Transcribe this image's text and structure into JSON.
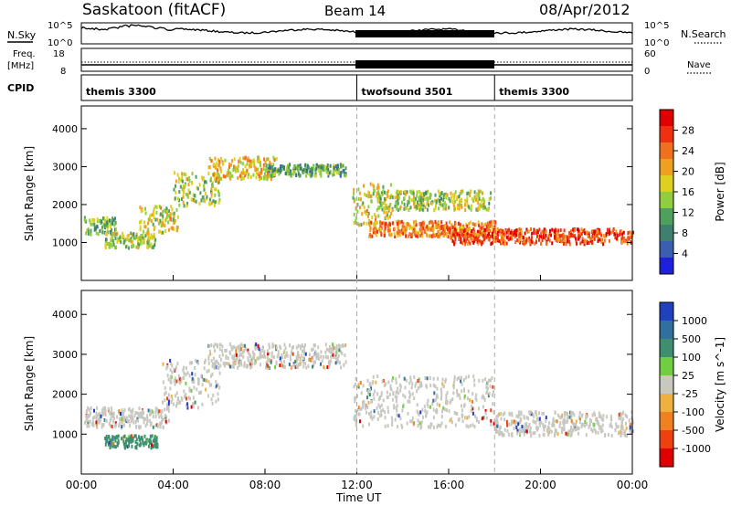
{
  "header": {
    "station": "Saskatoon (fitACF)",
    "beam": "Beam 14",
    "date": "08/Apr/2012"
  },
  "summary": {
    "nsky_label": "N.Sky",
    "nsky_tick_top": "10^5",
    "nsky_tick_bot": "10^0",
    "nsearch_tick_top": "10^5",
    "nsearch_tick_bot": "10^0",
    "nsearch_label": "N.Search",
    "freq_label_1": "Freq.",
    "freq_label_2": "[MHz]",
    "freq_tick_top": "18",
    "freq_tick_bot": "8",
    "nave_tick_top": "60",
    "nave_tick_bot": "0",
    "nave_label": "Nave",
    "cpid_label": "CPID",
    "cpid_modes": [
      {
        "name": "themis 3300",
        "start_hour": 0
      },
      {
        "name": "twofsound 3501",
        "start_hour": 12
      },
      {
        "name": "themis 3300",
        "start_hour": 18
      }
    ]
  },
  "chart_data": [
    {
      "type": "heatmap",
      "title": "Power",
      "ylabel": "Slant Range [km]",
      "xlabel": "",
      "ylim": [
        0,
        4600
      ],
      "y_ticks": [
        "1000",
        "2000",
        "3000",
        "4000"
      ],
      "x_range_hours": [
        0,
        24
      ],
      "colorbar": {
        "label": "Power [dB]",
        "ticks": [
          "4",
          "8",
          "12",
          "16",
          "20",
          "24",
          "28"
        ],
        "range": [
          0,
          30
        ],
        "colors": [
          "#1f1fe0",
          "#3a5fb0",
          "#3f7f6f",
          "#4f9f5f",
          "#8fcf3f",
          "#dfd020",
          "#f0a020",
          "#f07020",
          "#f03010",
          "#e00000"
        ]
      },
      "bands": [
        {
          "t0": 0.1,
          "t1": 1.5,
          "r0": 1250,
          "r1": 1700,
          "level": 12
        },
        {
          "t0": 1.0,
          "t1": 3.2,
          "r0": 900,
          "r1": 1300,
          "level": 14
        },
        {
          "t0": 2.5,
          "t1": 4.2,
          "r0": 1300,
          "r1": 2000,
          "level": 16
        },
        {
          "t0": 4.0,
          "t1": 6.0,
          "r0": 2000,
          "r1": 2900,
          "level": 14
        },
        {
          "t0": 5.5,
          "t1": 8.5,
          "r0": 2700,
          "r1": 3300,
          "level": 18
        },
        {
          "t0": 8.0,
          "t1": 11.5,
          "r0": 2800,
          "r1": 3100,
          "level": 10
        },
        {
          "t0": 11.8,
          "t1": 13.5,
          "r0": 1500,
          "r1": 2600,
          "level": 16
        },
        {
          "t0": 12.8,
          "t1": 17.8,
          "r0": 1900,
          "r1": 2400,
          "level": 14
        },
        {
          "t0": 12.5,
          "t1": 18.0,
          "r0": 1200,
          "r1": 1600,
          "level": 22
        },
        {
          "t0": 16.0,
          "t1": 24.0,
          "r0": 1000,
          "r1": 1400,
          "level": 26
        }
      ]
    },
    {
      "type": "heatmap",
      "title": "Velocity",
      "ylabel": "Slant Range [km]",
      "xlabel": "Time UT",
      "ylim": [
        0,
        4600
      ],
      "y_ticks": [
        "1000",
        "2000",
        "3000",
        "4000"
      ],
      "x_range_hours": [
        0,
        24
      ],
      "x_ticks": [
        "00:00",
        "04:00",
        "08:00",
        "12:00",
        "16:00",
        "20:00",
        "00:00"
      ],
      "colorbar": {
        "label": "Velocity [m s^-1]",
        "ticks": [
          "1000",
          "500",
          "100",
          "25",
          "-25",
          "-100",
          "-500",
          "-1000"
        ],
        "colors": [
          "#2040c0",
          "#3070a0",
          "#3f8f6f",
          "#6fcf3f",
          "#c8c8c0",
          "#f0b040",
          "#f08020",
          "#f04010",
          "#e00000"
        ]
      },
      "bands": [
        {
          "t0": 0.1,
          "t1": 3.8,
          "r0": 1200,
          "r1": 1700,
          "color": "#c8c8c0"
        },
        {
          "t0": 1.0,
          "t1": 3.3,
          "r0": 700,
          "r1": 1000,
          "color": "#3f8f6f"
        },
        {
          "t0": 3.5,
          "t1": 6.0,
          "r0": 1700,
          "r1": 2900,
          "color": "#c8c8c0"
        },
        {
          "t0": 5.5,
          "t1": 11.5,
          "r0": 2700,
          "r1": 3300,
          "color": "#c8c8c0"
        },
        {
          "t0": 11.8,
          "t1": 18.0,
          "r0": 1200,
          "r1": 2500,
          "color": "#c8c8c0"
        },
        {
          "t0": 18.0,
          "t1": 24.0,
          "r0": 1000,
          "r1": 1600,
          "color": "#c8c8c0"
        }
      ]
    }
  ]
}
